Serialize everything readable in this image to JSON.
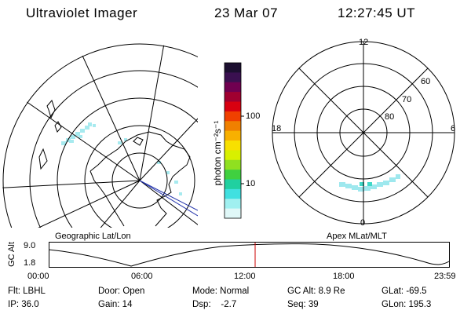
{
  "header": {
    "instrument": "Ultraviolet Imager",
    "date": "23 Mar 07",
    "time": "12:27:45 UT"
  },
  "colorbar": {
    "unit_label": "photon cm⁻²s⁻¹",
    "ticks": [
      "100",
      "10"
    ],
    "colors": [
      "#1c0f30",
      "#3a1050",
      "#700050",
      "#a00030",
      "#d80010",
      "#f04000",
      "#f08000",
      "#f8b000",
      "#f8e000",
      "#d8f000",
      "#90e020",
      "#40d040",
      "#20d0a0",
      "#40e0e0",
      "#a0f0f0",
      "#e0f8f8"
    ]
  },
  "left_map": {
    "caption": "Geographic Lat/Lon"
  },
  "right_map": {
    "caption": "Apex MLat/MLT",
    "mlt_labels": {
      "top": "12",
      "bottom": "0",
      "left": "18",
      "right": "6"
    },
    "lat_labels": [
      "60",
      "70",
      "80"
    ]
  },
  "altitude_plot": {
    "axis_label": "GC Alt",
    "y_ticks": [
      "9.0",
      "1.8"
    ],
    "x_ticks": [
      "00:00",
      "06:00",
      "12:00",
      "18:00",
      "23:59"
    ],
    "current_marker_color": "#cc0000"
  },
  "status": {
    "flt": "Flt: LBHL",
    "ip": "IP: 36.0",
    "door": "Door: Open",
    "gain": "Gain: 14",
    "mode": "Mode: Normal",
    "dsp": "Dsp:    -2.7",
    "gc_alt": "GC Alt: 8.9 Re",
    "seq": "Seq: 39",
    "glat": "GLat: -69.5",
    "glon": "GLon: 195.3"
  }
}
